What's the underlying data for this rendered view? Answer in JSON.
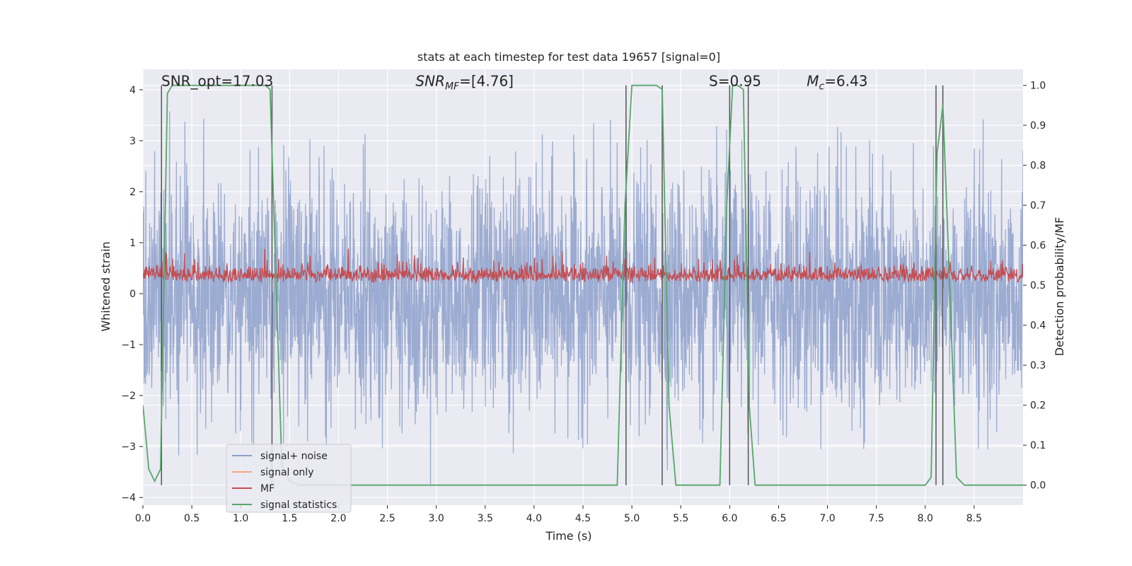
{
  "chart_data": {
    "type": "line",
    "title": "stats at each timestep for test data 19657 [signal=0]",
    "xlabel": "Time (s)",
    "ylabel": "Whitened strain",
    "ylabel_right": "Detection probability/MF",
    "xlim": [
      0.0,
      9.0
    ],
    "ylim": [
      -4.15,
      4.4
    ],
    "ylim_right": [
      -0.05,
      1.04
    ],
    "xticks": [
      "0.0",
      "0.5",
      "1.0",
      "1.5",
      "2.0",
      "2.5",
      "3.0",
      "3.5",
      "4.0",
      "4.5",
      "5.0",
      "5.5",
      "6.0",
      "6.5",
      "7.0",
      "7.5",
      "8.0",
      "8.5"
    ],
    "yticks": [
      "−4",
      "−3",
      "−2",
      "−1",
      "0",
      "1",
      "2",
      "3",
      "4"
    ],
    "yticks_right": [
      "0.0",
      "0.1",
      "0.2",
      "0.3",
      "0.4",
      "0.5",
      "0.6",
      "0.7",
      "0.8",
      "0.9",
      "1.0"
    ],
    "grid": true,
    "legend_position": "lower-left",
    "annotations": [
      {
        "text": "SNR_opt=17.03",
        "x": 0.2,
        "y": 4.1
      },
      {
        "text": "SNR_MF=[4.76]",
        "x": 2.6,
        "y": 4.1
      },
      {
        "text": "S=0.95",
        "x": 5.6,
        "y": 4.1
      },
      {
        "text": "M_c=6.43",
        "x": 6.6,
        "y": 4.1
      }
    ],
    "series": [
      {
        "name": "signal+ noise",
        "color": "#8da0cb",
        "axis": "left",
        "amplitude_range": [
          -3.8,
          3.7
        ]
      },
      {
        "name": "signal only",
        "color": "#f4a582",
        "axis": "left",
        "values": []
      },
      {
        "name": "MF",
        "color": "#c44e52",
        "axis": "left",
        "amplitude_range": [
          0.0,
          0.88
        ]
      },
      {
        "name": "signal statistics",
        "color": "#55a868",
        "axis": "right",
        "x": [
          0.0,
          0.06,
          0.12,
          0.18,
          0.25,
          0.3,
          1.25,
          1.3,
          1.35,
          1.42,
          1.5,
          1.6,
          4.7,
          4.85,
          4.93,
          5.0,
          5.25,
          5.31,
          5.38,
          5.45,
          5.6,
          5.9,
          5.97,
          6.03,
          6.08,
          6.14,
          6.2,
          6.26,
          6.35,
          6.5,
          7.5,
          8.0,
          8.06,
          8.12,
          8.18,
          8.25,
          8.32,
          8.4,
          9.0
        ],
        "values": [
          0.2,
          0.04,
          0.01,
          0.04,
          0.98,
          1.0,
          1.0,
          0.99,
          0.6,
          0.05,
          0.01,
          0.0,
          0.0,
          0.0,
          0.7,
          1.0,
          1.0,
          0.99,
          0.2,
          0.0,
          0.0,
          0.0,
          0.7,
          1.0,
          1.0,
          0.99,
          0.2,
          0.0,
          0.0,
          0.0,
          0.0,
          0.0,
          0.02,
          0.83,
          0.95,
          0.5,
          0.02,
          0.0,
          0.0
        ]
      }
    ],
    "vlines_x": [
      0.19,
      1.32,
      4.94,
      5.31,
      6.0,
      6.19,
      8.11,
      8.18
    ]
  }
}
